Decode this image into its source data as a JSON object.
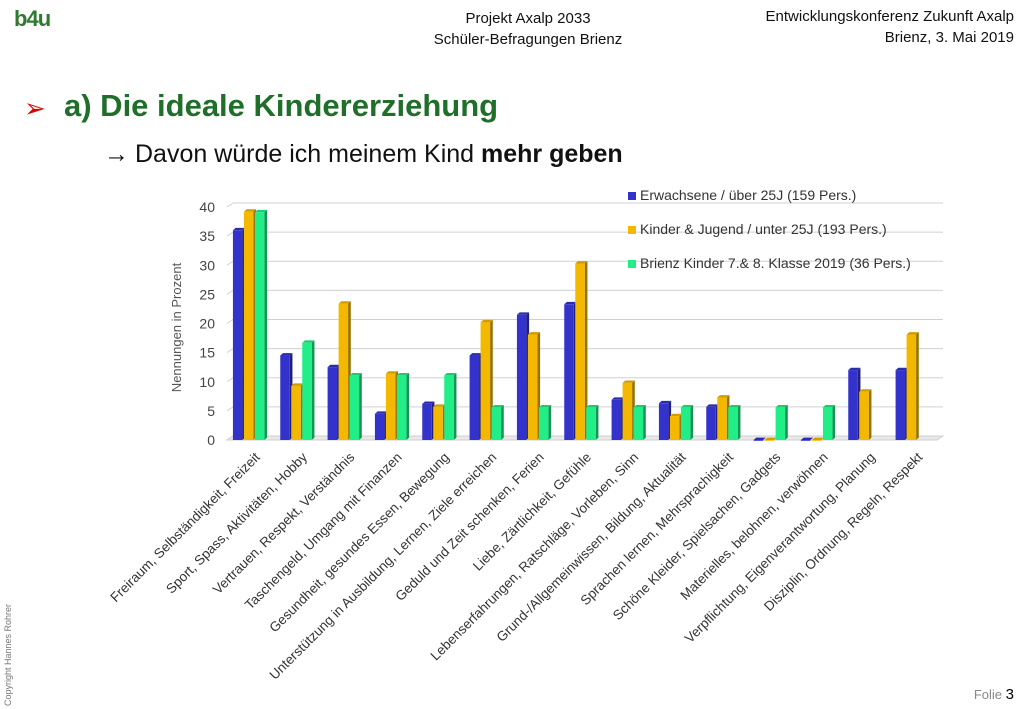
{
  "header": {
    "logo_main": "b4",
    "logo_accent": "u",
    "center_line1": "Projekt Axalp 2033",
    "center_line2": "Schüler-Befragungen Brienz",
    "right_line1": "Entwicklungskonferenz Zukunft Axalp",
    "right_line2": "Brienz, 3. Mai 2019"
  },
  "slide": {
    "bullet": "➢",
    "title": "a) Die ideale Kindererziehung",
    "subtitle_arrow": "→",
    "subtitle_text": "Davon würde ich meinem Kind ",
    "subtitle_bold": "mehr geben"
  },
  "footer": {
    "copyright": "Copyright Hannes Rohrer",
    "folie_label": "Folie",
    "folie_number": "3"
  },
  "chart_data": {
    "type": "bar",
    "ylabel": "Nennungen in Prozent",
    "ylim": [
      0,
      40
    ],
    "yticks": [
      0,
      5,
      10,
      15,
      20,
      25,
      30,
      35,
      40
    ],
    "grid": true,
    "legend_position": "top-right",
    "categories": [
      "Freiraum, Selbständigkeit, Freizeit",
      "Sport, Spass, Aktivitäten, Hobby",
      "Vertrauen, Respekt, Verständnis",
      "Taschengeld, Umgang mit Finanzen",
      "Gesundheit, gesundes Essen, Bewegung",
      "Unterstützung in Ausbildung, Lernen, Ziele erreichen",
      "Geduld und Zeit schenken, Ferien",
      "Liebe, Zärtlichkeit, Gefühle",
      "Lebenserfahrungen, Ratschläge, Vorleben, Sinn",
      "Grund-/Allgemeinwissen, Bildung, Aktualität",
      "Sprachen lernen, Mehrsprachigkeit",
      "Schöne Kleider, Spielsachen, Gadgets",
      "Materielles, belohnen, verwöhnen",
      "Verpflichtung, Eigenverantwortung, Planung",
      "Disziplin, Ordnung, Regeln, Respekt"
    ],
    "series": [
      {
        "name": "Erwachsene / über 25J (159 Pers.)",
        "color": "#3333cc",
        "values": [
          36,
          14.5,
          12.5,
          4.5,
          6.2,
          14.5,
          21.5,
          23.3,
          6.9,
          6.3,
          5.7,
          0,
          0,
          12,
          12
        ]
      },
      {
        "name": "Kinder & Jugend / unter 25J (193 Pers.)",
        "color": "#f5b800",
        "values": [
          39.2,
          9.3,
          23.4,
          11.4,
          5.7,
          20.2,
          18.1,
          30.3,
          9.8,
          4.1,
          7.3,
          0,
          0,
          8.3,
          18.1
        ]
      },
      {
        "name": "Brienz Kinder 7.& 8. Klasse 2019 (36 Pers.)",
        "color": "#22ee88",
        "values": [
          39.1,
          16.7,
          11.1,
          11.1,
          11.1,
          5.6,
          5.6,
          5.6,
          5.6,
          5.6,
          5.6,
          5.6,
          5.6,
          null,
          null
        ]
      }
    ]
  }
}
